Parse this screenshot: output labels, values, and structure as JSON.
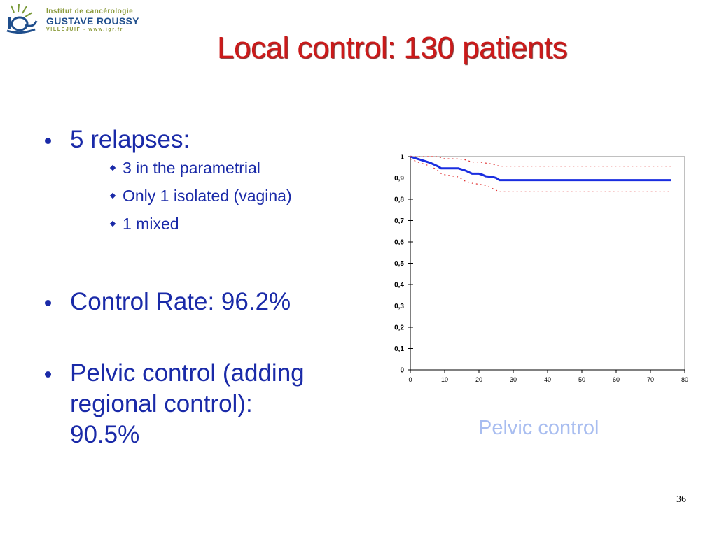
{
  "logo": {
    "line1": "Institut de cancérologie",
    "line2": "GUSTAVE ROUSSY",
    "line3": "VILLEJUIF - www.igr.fr"
  },
  "title": "Local control: 130 patients",
  "bullets": {
    "relapses": "5 relapses:",
    "sub1": "3 in the parametrial",
    "sub2": "Only 1 isolated (vagina)",
    "sub3": "1 mixed",
    "control_rate": "Control Rate: 96.2%",
    "pelvic_line1": "Pelvic control (adding",
    "pelvic_line2": "regional control):",
    "pelvic_line3": "90.5%"
  },
  "caption": "Pelvic control",
  "page_number": "36",
  "chart_data": {
    "type": "line",
    "xlim": [
      0,
      80
    ],
    "ylim": [
      0,
      1
    ],
    "x_ticks": [
      0,
      10,
      20,
      30,
      40,
      50,
      60,
      70,
      80
    ],
    "x_tick_labels": [
      "0",
      "10",
      "20",
      "30",
      "40",
      "50",
      "60",
      "70",
      "80"
    ],
    "y_ticks": [
      0,
      0.1,
      0.2,
      0.3,
      0.4,
      0.5,
      0.6,
      0.7,
      0.8,
      0.9,
      1
    ],
    "y_tick_labels": [
      "0",
      "0,1",
      "0,2",
      "0,3",
      "0,4",
      "0,5",
      "0,6",
      "0,7",
      "0,8",
      "0,9",
      "1"
    ],
    "grid": false,
    "series": [
      {
        "role": "estimate",
        "style": "solid",
        "color": "#1a2ee0",
        "x": [
          0,
          2,
          4,
          6,
          8,
          9,
          10,
          12,
          14,
          16,
          18,
          20,
          21,
          22,
          24,
          25,
          26,
          28,
          30,
          40,
          50,
          60,
          70,
          76
        ],
        "y": [
          1,
          0.99,
          0.98,
          0.97,
          0.955,
          0.945,
          0.945,
          0.945,
          0.945,
          0.935,
          0.92,
          0.92,
          0.915,
          0.908,
          0.905,
          0.9,
          0.89,
          0.89,
          0.89,
          0.89,
          0.89,
          0.89,
          0.89,
          0.89
        ]
      },
      {
        "role": "upper",
        "style": "dotted",
        "color": "#e03030",
        "x": [
          0,
          4,
          8,
          10,
          14,
          16,
          18,
          20,
          22,
          24,
          26,
          30,
          40,
          50,
          60,
          70,
          76
        ],
        "y": [
          1,
          1,
          1,
          0.99,
          0.99,
          0.985,
          0.975,
          0.975,
          0.97,
          0.965,
          0.955,
          0.955,
          0.955,
          0.955,
          0.955,
          0.955,
          0.955
        ]
      },
      {
        "role": "lower",
        "style": "dotted",
        "color": "#e03030",
        "x": [
          0,
          2,
          4,
          6,
          8,
          9,
          10,
          14,
          16,
          18,
          20,
          22,
          24,
          26,
          30,
          40,
          50,
          60,
          70,
          76
        ],
        "y": [
          0.99,
          0.975,
          0.965,
          0.955,
          0.935,
          0.92,
          0.915,
          0.905,
          0.885,
          0.875,
          0.87,
          0.865,
          0.85,
          0.835,
          0.835,
          0.835,
          0.835,
          0.835,
          0.835,
          0.835
        ]
      }
    ]
  }
}
